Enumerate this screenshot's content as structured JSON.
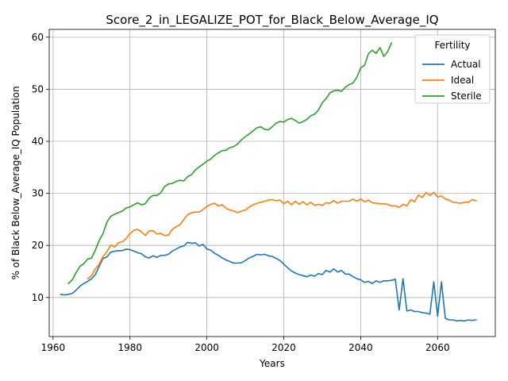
{
  "chart_data": {
    "type": "line",
    "title": "Score_2_in_LEGALIZE_POT_for_Black_Below_Average_IQ",
    "xlabel": "Years",
    "ylabel": "% of Black Below_Average_IQ Population",
    "xlim": [
      1959,
      2075
    ],
    "ylim": [
      2.5,
      61.5
    ],
    "xticks": [
      1960,
      1980,
      2000,
      2020,
      2040,
      2060
    ],
    "yticks": [
      10,
      20,
      30,
      40,
      50,
      60
    ],
    "grid": true,
    "legend": {
      "title": "Fertility",
      "placement": "top-right"
    },
    "series": [
      {
        "name": "Actual",
        "color": "#1f77b4",
        "x": [
          1962,
          1963,
          1964,
          1965,
          1966,
          1967,
          1968,
          1969,
          1970,
          1971,
          1972,
          1973,
          1974,
          1975,
          1976,
          1977,
          1978,
          1979,
          1980,
          1981,
          1982,
          1983,
          1984,
          1985,
          1986,
          1987,
          1988,
          1989,
          1990,
          1991,
          1992,
          1993,
          1994,
          1995,
          1996,
          1997,
          1998,
          1999,
          2000,
          2001,
          2002,
          2003,
          2004,
          2005,
          2006,
          2007,
          2008,
          2009,
          2010,
          2011,
          2012,
          2013,
          2014,
          2015,
          2016,
          2017,
          2018,
          2019,
          2020,
          2021,
          2022,
          2023,
          2024,
          2025,
          2026,
          2027,
          2028,
          2029,
          2030,
          2031,
          2032,
          2033,
          2034,
          2035,
          2036,
          2037,
          2038,
          2039,
          2040,
          2041,
          2042,
          2043,
          2044,
          2045,
          2046,
          2047,
          2048,
          2049,
          2050,
          2051,
          2052,
          2053,
          2054,
          2055,
          2056,
          2057,
          2058,
          2059,
          2060,
          2061,
          2062,
          2063,
          2064,
          2065,
          2066,
          2067,
          2068,
          2069,
          2070
        ],
        "values": [
          10.6,
          10.5,
          10.6,
          10.8,
          11.4,
          12.2,
          12.7,
          13.1,
          13.6,
          14.4,
          16.0,
          17.5,
          17.8,
          18.7,
          18.9,
          19.0,
          19.0,
          19.3,
          19.2,
          18.9,
          18.6,
          18.4,
          17.8,
          17.6,
          18.0,
          17.7,
          18.1,
          18.1,
          18.3,
          18.9,
          19.3,
          19.7,
          19.9,
          20.6,
          20.4,
          20.5,
          19.9,
          20.2,
          19.3,
          19.1,
          18.5,
          18.1,
          17.6,
          17.2,
          16.9,
          16.6,
          16.6,
          16.7,
          17.1,
          17.6,
          17.9,
          18.3,
          18.2,
          18.3,
          18.0,
          17.9,
          17.5,
          17.1,
          16.4,
          15.7,
          15.1,
          14.7,
          14.4,
          14.2,
          14.0,
          14.3,
          14.1,
          14.6,
          14.4,
          15.2,
          14.9,
          15.5,
          14.9,
          15.2,
          14.5,
          14.5,
          14.0,
          13.6,
          13.4,
          12.9,
          13.1,
          12.7,
          13.2,
          12.9,
          13.2,
          13.2,
          13.3,
          13.5,
          7.6,
          13.6,
          7.4,
          7.6,
          7.3,
          7.3,
          7.1,
          7.0,
          6.8,
          13.0,
          6.4,
          13.0,
          6.0,
          5.7,
          5.7,
          5.5,
          5.6,
          5.5,
          5.7,
          5.6,
          5.7
        ]
      },
      {
        "name": "Ideal",
        "color": "#ff7f0e",
        "x": [
          1969,
          1970,
          1971,
          1972,
          1973,
          1974,
          1975,
          1976,
          1977,
          1978,
          1979,
          1980,
          1981,
          1982,
          1983,
          1984,
          1985,
          1986,
          1987,
          1988,
          1989,
          1990,
          1991,
          1992,
          1993,
          1994,
          1995,
          1996,
          1997,
          1998,
          1999,
          2000,
          2001,
          2002,
          2003,
          2004,
          2005,
          2006,
          2007,
          2008,
          2009,
          2010,
          2011,
          2012,
          2013,
          2014,
          2015,
          2016,
          2017,
          2018,
          2019,
          2020,
          2021,
          2022,
          2023,
          2024,
          2025,
          2026,
          2027,
          2028,
          2029,
          2030,
          2031,
          2032,
          2033,
          2034,
          2035,
          2036,
          2037,
          2038,
          2039,
          2040,
          2041,
          2042,
          2043,
          2044,
          2045,
          2046,
          2047,
          2048,
          2049,
          2050,
          2051,
          2052,
          2053,
          2054,
          2055,
          2056,
          2057,
          2058,
          2059,
          2060,
          2061,
          2062,
          2063,
          2064,
          2065,
          2066,
          2067,
          2068,
          2069,
          2070
        ],
        "values": [
          13.6,
          14.2,
          15.5,
          16.4,
          17.9,
          18.8,
          20.1,
          19.7,
          20.5,
          20.7,
          21.3,
          22.3,
          22.9,
          23.1,
          22.6,
          21.9,
          22.8,
          22.8,
          22.2,
          22.3,
          21.9,
          22.0,
          23.1,
          23.6,
          24.0,
          25.0,
          25.9,
          26.3,
          26.4,
          26.4,
          26.9,
          27.5,
          27.9,
          28.1,
          27.6,
          27.8,
          27.1,
          26.8,
          26.6,
          26.3,
          26.6,
          26.8,
          27.4,
          27.8,
          28.1,
          28.3,
          28.5,
          28.7,
          28.8,
          28.6,
          28.7,
          28.0,
          28.5,
          27.8,
          28.5,
          27.9,
          28.4,
          27.8,
          28.3,
          27.7,
          27.9,
          27.7,
          28.2,
          28.1,
          28.6,
          28.1,
          28.5,
          28.5,
          28.5,
          28.9,
          28.5,
          28.9,
          28.4,
          28.7,
          28.2,
          28.1,
          28.0,
          28.0,
          27.9,
          27.6,
          27.6,
          27.3,
          27.9,
          27.6,
          28.8,
          28.4,
          29.7,
          29.2,
          30.2,
          29.6,
          30.2,
          29.3,
          29.5,
          28.9,
          28.7,
          28.3,
          28.2,
          28.1,
          28.3,
          28.3,
          28.8,
          28.6
        ]
      },
      {
        "name": "Sterile",
        "color": "#2ca02c",
        "x": [
          1964,
          1965,
          1966,
          1967,
          1968,
          1969,
          1970,
          1971,
          1972,
          1973,
          1974,
          1975,
          1976,
          1977,
          1978,
          1979,
          1980,
          1981,
          1982,
          1983,
          1984,
          1985,
          1986,
          1987,
          1988,
          1989,
          1990,
          1991,
          1992,
          1993,
          1994,
          1995,
          1996,
          1997,
          1998,
          1999,
          2000,
          2001,
          2002,
          2003,
          2004,
          2005,
          2006,
          2007,
          2008,
          2009,
          2010,
          2011,
          2012,
          2013,
          2014,
          2015,
          2016,
          2017,
          2018,
          2019,
          2020,
          2021,
          2022,
          2023,
          2024,
          2025,
          2026,
          2027,
          2028,
          2029,
          2030,
          2031,
          2032,
          2033,
          2034,
          2035,
          2036,
          2037,
          2038,
          2039,
          2040,
          2041,
          2042,
          2043,
          2044,
          2045,
          2046,
          2047,
          2048
        ],
        "values": [
          12.7,
          13.4,
          14.8,
          16.0,
          16.5,
          17.4,
          17.6,
          19.1,
          21.0,
          22.3,
          24.5,
          25.6,
          26.0,
          26.3,
          26.6,
          27.2,
          27.4,
          27.8,
          28.2,
          27.8,
          28.0,
          29.1,
          29.6,
          29.6,
          30.1,
          31.3,
          31.8,
          31.9,
          32.3,
          32.5,
          32.4,
          33.2,
          33.6,
          34.5,
          35.1,
          35.6,
          36.2,
          36.6,
          37.3,
          37.8,
          38.2,
          38.3,
          38.8,
          39.0,
          39.5,
          40.3,
          40.9,
          41.4,
          42.0,
          42.6,
          42.8,
          42.3,
          42.2,
          42.8,
          43.5,
          43.8,
          43.7,
          44.2,
          44.4,
          44.0,
          43.5,
          43.8,
          44.2,
          44.9,
          45.2,
          46.0,
          47.4,
          48.2,
          49.3,
          49.7,
          49.8,
          49.6,
          50.4,
          50.9,
          51.2,
          52.3,
          54.1,
          54.6,
          56.8,
          57.5,
          56.9,
          58.0,
          56.3,
          57.2,
          58.9
        ]
      }
    ]
  }
}
